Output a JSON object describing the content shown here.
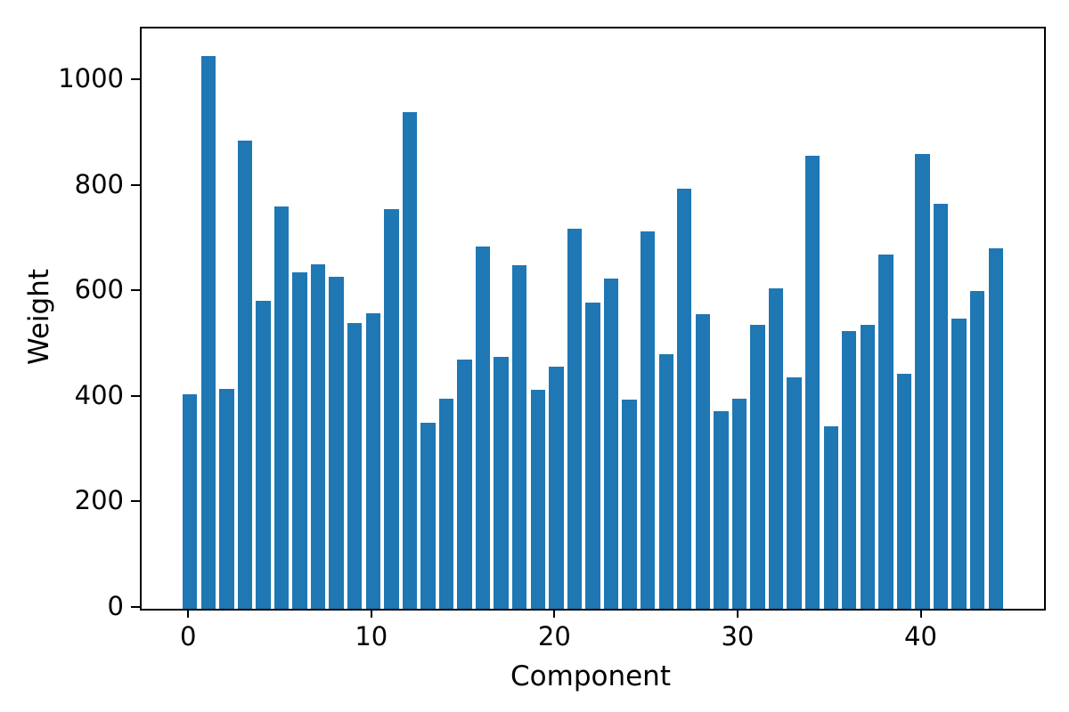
{
  "chart_data": {
    "type": "bar",
    "title": "",
    "xlabel": "Component",
    "ylabel": "Weight",
    "x": [
      0,
      1,
      2,
      3,
      4,
      5,
      6,
      7,
      8,
      9,
      10,
      11,
      12,
      13,
      14,
      15,
      16,
      17,
      18,
      19,
      20,
      21,
      22,
      23,
      24,
      25,
      26,
      27,
      28,
      29,
      30,
      31,
      32,
      33,
      34,
      35,
      36,
      37,
      38,
      39,
      40,
      41,
      42,
      43,
      44
    ],
    "values": [
      406,
      1047,
      417,
      887,
      584,
      762,
      638,
      653,
      630,
      541,
      560,
      757,
      942,
      352,
      398,
      473,
      687,
      477,
      651,
      415,
      459,
      720,
      581,
      626,
      397,
      716,
      483,
      796,
      559,
      375,
      399,
      539,
      608,
      438,
      858,
      346,
      526,
      539,
      672,
      446,
      862,
      767,
      550,
      602,
      683
    ],
    "bar_color": "#1f77b4",
    "bar_width": 0.8,
    "xticks": [
      0,
      10,
      20,
      30,
      40
    ],
    "yticks": [
      0,
      200,
      400,
      600,
      800,
      1000
    ],
    "xlim": [
      -2.64,
      46.64
    ],
    "ylim": [
      0,
      1100
    ],
    "grid": false,
    "legend": null
  }
}
